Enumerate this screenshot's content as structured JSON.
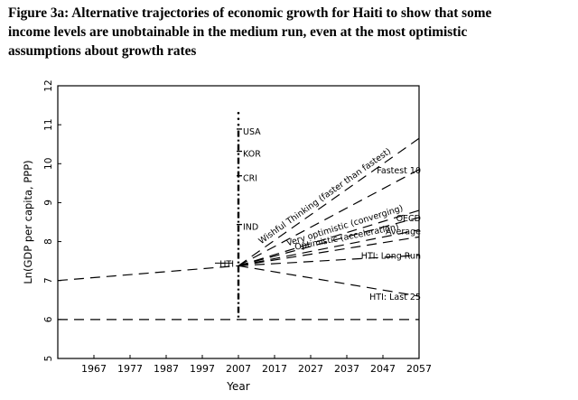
{
  "caption": {
    "lines": [
      "Figure 3a: Alternative trajectories of economic growth for Haiti to show that some",
      "income levels are unobtainable in the medium run, even at the most optimistic",
      "assumptions about growth rates"
    ]
  },
  "chart_data": {
    "type": "line",
    "xlabel": "Year",
    "ylabel": "Ln(GDP per capita, PPP)",
    "xlim": [
      1957,
      2057
    ],
    "ylim": [
      5,
      12
    ],
    "x_ticks": [
      1967,
      1977,
      1987,
      1997,
      2007,
      2017,
      2027,
      2037,
      2047,
      2057
    ],
    "y_ticks": [
      5,
      6,
      7,
      8,
      9,
      10,
      11,
      12
    ],
    "grid": false,
    "legend": "none (series labeled inline)",
    "origin": {
      "label": "HTI",
      "x": 2007,
      "y": 7.38
    },
    "reference_line": {
      "y": 6.0,
      "style": "dashed"
    },
    "historical_trend": {
      "x": [
        1957,
        2007
      ],
      "y": [
        7.0,
        7.38
      ],
      "style": "dashed"
    },
    "series": [
      {
        "name": "Wishful Thinking (faster than fastest)",
        "x": [
          2007,
          2057
        ],
        "y": [
          7.38,
          10.65
        ]
      },
      {
        "name": "Fastest 10",
        "x": [
          2007,
          2057
        ],
        "y": [
          7.38,
          9.85
        ]
      },
      {
        "name": "Very optimistic (converging)",
        "x": [
          2007,
          2057
        ],
        "y": [
          7.38,
          8.8
        ]
      },
      {
        "name": "OECD",
        "x": [
          2007,
          2057
        ],
        "y": [
          7.38,
          8.62
        ]
      },
      {
        "name": "Optimistic (acceleration)",
        "x": [
          2007,
          2057
        ],
        "y": [
          7.38,
          8.3
        ]
      },
      {
        "name": "Average",
        "x": [
          2007,
          2057
        ],
        "y": [
          7.38,
          8.12
        ]
      },
      {
        "name": "HTI: Long Run",
        "x": [
          2007,
          2057
        ],
        "y": [
          7.38,
          7.65
        ]
      },
      {
        "name": "HTI: Last 25",
        "x": [
          2007,
          2057
        ],
        "y": [
          7.38,
          6.6
        ]
      }
    ],
    "country_markers": [
      {
        "label": "USA",
        "y": 10.75
      },
      {
        "label": "KOR",
        "y": 10.18
      },
      {
        "label": "CRI",
        "y": 9.55
      },
      {
        "label": "IND",
        "y": 8.3
      }
    ],
    "colors": {
      "ink": "#000000",
      "background": "#ffffff"
    }
  }
}
